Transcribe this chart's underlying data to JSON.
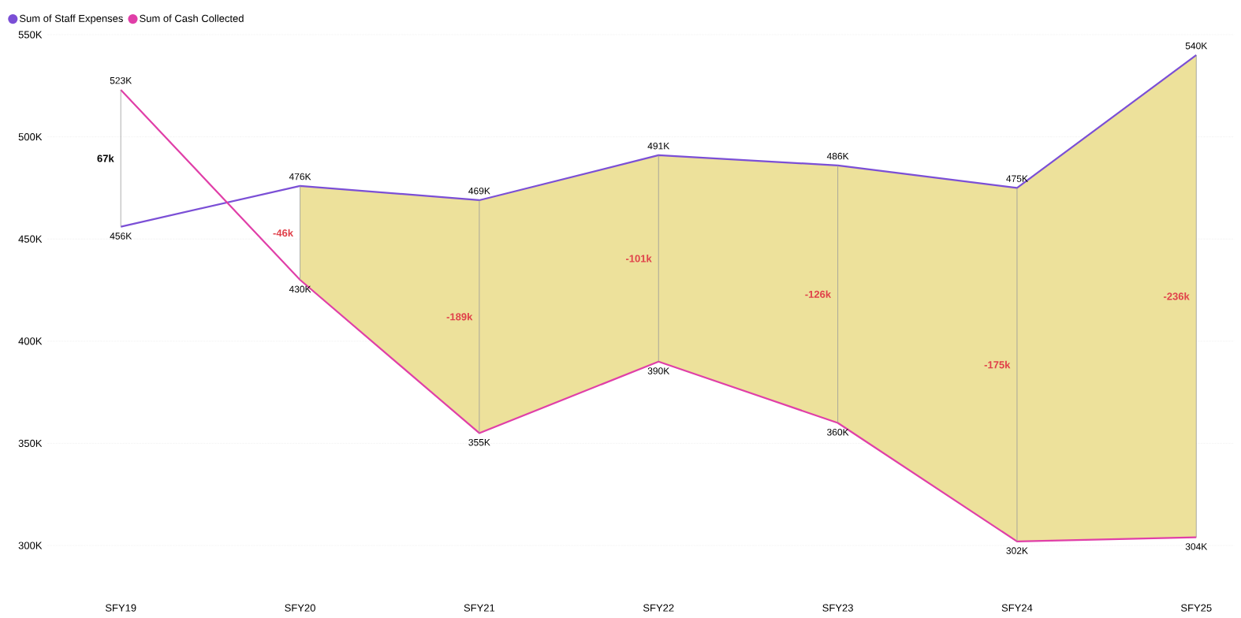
{
  "chart_data": {
    "type": "line",
    "categories": [
      "SFY19",
      "SFY20",
      "SFY21",
      "SFY22",
      "SFY23",
      "SFY24",
      "SFY25"
    ],
    "series": [
      {
        "name": "Sum of Staff Expenses",
        "color": "#7b4fd6",
        "values": [
          456000,
          476000,
          469000,
          491000,
          486000,
          475000,
          540000
        ],
        "value_labels": [
          "456K",
          "476K",
          "469K",
          "491K",
          "486K",
          "475K",
          "540K"
        ],
        "lower": [
          null,
          430000,
          355000,
          390000,
          360000,
          302000,
          304000
        ],
        "upper": [
          null,
          476000,
          469000,
          491000,
          486000,
          475000,
          540000
        ]
      },
      {
        "name": "Sum of Cash Collected",
        "color": "#e03fa8",
        "values": [
          523000,
          430000,
          355000,
          390000,
          360000,
          302000,
          304000
        ],
        "value_labels": [
          "523K",
          "430K",
          "355K",
          "390K",
          "360K",
          "302K",
          "304K"
        ],
        "errors": [
          [
            456000,
            523000
          ],
          [
            430000,
            476000
          ],
          [
            355000,
            469000
          ],
          [
            390000,
            491000
          ],
          [
            360000,
            486000
          ],
          [
            302000,
            475000
          ],
          [
            304000,
            540000
          ]
        ]
      }
    ],
    "ylim": [
      300000,
      550000
    ],
    "yticks": [
      {
        "value": 300000,
        "label": "300K"
      },
      {
        "value": 350000,
        "label": "350K"
      },
      {
        "value": 400000,
        "label": "400K"
      },
      {
        "value": 450000,
        "label": "450K"
      },
      {
        "value": 500000,
        "label": "500K"
      },
      {
        "value": 550000,
        "label": "550K"
      }
    ],
    "grid": "y",
    "legend": "top left",
    "annotations": [
      "67k",
      "-46k",
      "-189k",
      "-101k",
      "-126k",
      "-175k",
      "-236k"
    ]
  }
}
